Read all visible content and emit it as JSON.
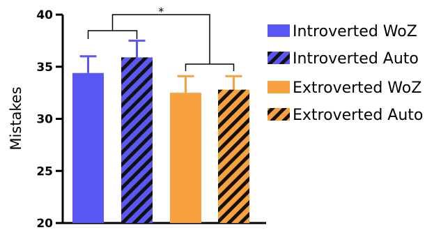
{
  "chart_data": {
    "type": "bar",
    "title": "",
    "xlabel": "",
    "ylabel": "Mistakes",
    "ylim": [
      20,
      40
    ],
    "yticks": [
      "20",
      "25",
      "30",
      "35",
      "40"
    ],
    "grid": false,
    "legend_position": "right",
    "series": [
      {
        "name": "Introverted WoZ",
        "value": 34.4,
        "error": 1.6,
        "color": "#5b57f5",
        "pattern": "solid"
      },
      {
        "name": "Introverted Auto",
        "value": 35.9,
        "error": 1.6,
        "color": "#5b57f5",
        "pattern": "hatched"
      },
      {
        "name": "Extroverted WoZ",
        "value": 32.5,
        "error": 1.6,
        "color": "#f9a13f",
        "pattern": "solid"
      },
      {
        "name": "Extroverted Auto",
        "value": 32.8,
        "error": 1.3,
        "color": "#f9a13f",
        "pattern": "hatched"
      }
    ],
    "annotations": [
      {
        "text": "*",
        "compares": [
          "Introverted",
          "Extroverted"
        ]
      }
    ]
  }
}
